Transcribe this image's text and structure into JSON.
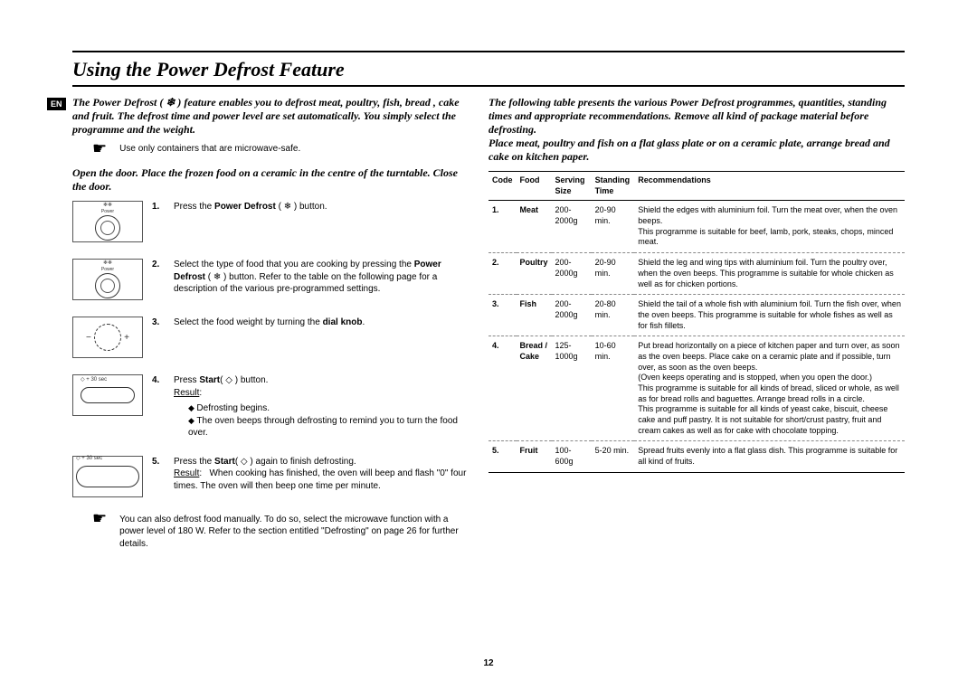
{
  "title": "Using the Power Defrost Feature",
  "langBadge": "EN",
  "left": {
    "intro": "The Power Defrost ( ❄ ) feature enables you to defrost meat, poultry, fish, bread , cake and fruit. The defrost time and power level are set automatically. You simply select the programme and the weight.",
    "note1": "Use only containers that are microwave-safe.",
    "intro2": "Open the door. Place the frozen food on a ceramic in the centre of the turntable. Close the door.",
    "steps": [
      {
        "num": "1.",
        "text": "Press the <b>Power Defrost</b> ( ❄ ) button."
      },
      {
        "num": "2.",
        "text": "Select the type of food that you are cooking by pressing the <b>Power Defrost</b> ( ❄ ) button. Refer to the table on the following page for a description of the various pre-programmed settings."
      },
      {
        "num": "3.",
        "text": "Select the food weight by turning the <b>dial knob</b>."
      },
      {
        "num": "4.",
        "text": "Press <b>Start</b>( ◇ ) button.<br><span class=\"underline\">Result</span>:",
        "bullets": [
          "Defrosting begins.",
          "The oven beeps through defrosting to remind you to turn the food over."
        ]
      },
      {
        "num": "5.",
        "text": "Press the <b>Start</b>( ◇ ) again to finish defrosting.<br><span class=\"underline\">Result</span>:&nbsp;&nbsp;&nbsp;When cooking has finished, the oven will beep and flash \"0\" four times. The oven will then beep one time per minute."
      }
    ],
    "footnote": "You can also defrost food manually. To do so, select the microwave function with a power level of 180 W. Refer to the section entitled \"Defrosting\" on page 26 for further details.",
    "iconLabels": {
      "power": "Power",
      "plus30": "+ 30 sec"
    }
  },
  "right": {
    "intro": "The following table presents the various Power Defrost programmes, quantities, standing times and appropriate recommendations. Remove all kind of package material before defrosting.<br>Place meat, poultry and fish on a flat glass plate or on a ceramic plate, arrange bread and cake on kitchen paper.",
    "headers": {
      "code": "Code",
      "food": "Food",
      "size": "Serving\nSize",
      "time": "Standing\nTime",
      "rec": "Recommendations"
    },
    "rows": [
      {
        "code": "1.",
        "food": "Meat",
        "size": "200-2000g",
        "time": "20-90 min.",
        "rec": "Shield the edges with aluminium foil. Turn the meat over, when the oven beeps.\nThis programme is suitable for beef, lamb, pork, steaks, chops, minced meat."
      },
      {
        "code": "2.",
        "food": "Poultry",
        "size": "200-2000g",
        "time": "20-90 min.",
        "rec": "Shield the leg and wing tips with aluminium foil. Turn the poultry over, when the oven beeps. This programme is suitable for whole chicken as well as for chicken portions."
      },
      {
        "code": "3.",
        "food": "Fish",
        "size": "200-2000g",
        "time": "20-80 min.",
        "rec": "Shield the tail of a whole fish with aluminium foil. Turn the fish over, when the oven beeps. This programme is suitable for whole fishes as well as for fish fillets."
      },
      {
        "code": "4.",
        "food": "Bread / Cake",
        "size": "125-1000g",
        "time": "10-60 min.",
        "rec": "Put bread horizontally on a piece of kitchen paper and turn over, as soon as the oven beeps. Place cake on a ceramic plate and if possible, turn over, as soon as the oven beeps.\n(Oven keeps operating and is stopped, when you open the door.)\nThis programme is suitable for all kinds of bread, sliced or whole, as well as for bread rolls and baguettes. Arrange bread rolls in a circle.\nThis programme is suitable for all kinds of yeast cake, biscuit, cheese cake and puff pastry. It is not suitable for short/crust pastry, fruit and cream cakes as well as for cake with chocolate topping."
      },
      {
        "code": "5.",
        "food": "Fruit",
        "size": "100-600g",
        "time": "5-20 min.",
        "rec": "Spread fruits evenly into a flat glass dish. This programme is suitable for all kind of fruits."
      }
    ]
  },
  "pageNumber": "12"
}
